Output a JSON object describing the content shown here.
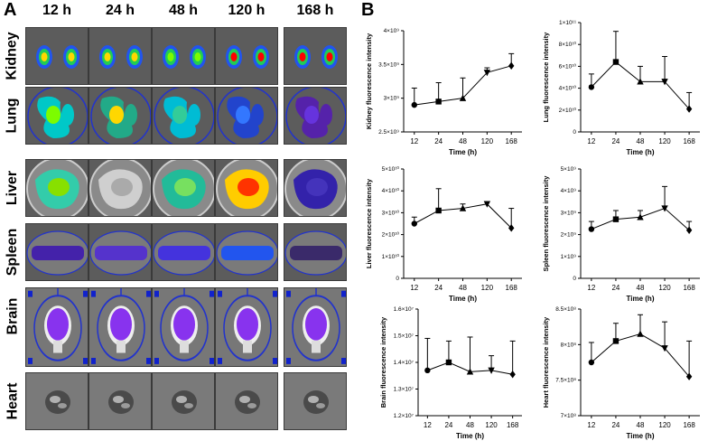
{
  "panels": {
    "a": "A",
    "b": "B"
  },
  "imaging": {
    "time_points": [
      "12 h",
      "24 h",
      "48 h",
      "120 h",
      "168 h"
    ],
    "organs": [
      "Kidney",
      "Lung",
      "Liver",
      "Spleen",
      "Brain",
      "Heart"
    ]
  },
  "chart_data": [
    {
      "type": "line",
      "title": "",
      "xlabel": "Time (h)",
      "ylabel": "Kidney fluorescence intensity",
      "categories": [
        "12",
        "24",
        "48",
        "120",
        "168"
      ],
      "values": [
        2900000000.0,
        2950000000.0,
        3000000000.0,
        3380000000.0,
        3480000000.0
      ],
      "errors": [
        250000000.0,
        280000000.0,
        300000000.0,
        70000000.0,
        180000000.0
      ],
      "marker": "circle-square-triangle-invtriangle-diamond",
      "ylim": [
        2500000000.0,
        4000000000.0
      ],
      "yticks": [
        "2.5×10⁹",
        "3×10⁹",
        "3.5×10⁹",
        "4×10⁹"
      ],
      "ytick_values": [
        2500000000.0,
        3000000000.0,
        3500000000.0,
        4000000000.0
      ]
    },
    {
      "type": "line",
      "title": "",
      "xlabel": "Time (h)",
      "ylabel": "Lung fluorescence intensity",
      "categories": [
        "12",
        "24",
        "48",
        "120",
        "168"
      ],
      "values": [
        41000000000.0,
        64000000000.0,
        46000000000.0,
        46000000000.0,
        21000000000.0
      ],
      "errors": [
        12000000000.0,
        28000000000.0,
        14000000000.0,
        23000000000.0,
        15000000000.0
      ],
      "ylim": [
        0,
        100000000000.0
      ],
      "yticks": [
        "0",
        "2×10¹⁰",
        "4×10¹⁰",
        "6×10¹⁰",
        "8×10¹⁰",
        "1×10¹¹"
      ],
      "ytick_values": [
        0,
        20000000000.0,
        40000000000.0,
        60000000000.0,
        80000000000.0,
        100000000000.0
      ]
    },
    {
      "type": "line",
      "title": "",
      "xlabel": "Time (h)",
      "ylabel": "Liver fluorescence intensity",
      "categories": [
        "12",
        "24",
        "48",
        "120",
        "168"
      ],
      "values": [
        25000000000.0,
        31000000000.0,
        32000000000.0,
        34000000000.0,
        23000000000.0
      ],
      "errors": [
        3000000000.0,
        10000000000.0,
        2000000000.0,
        1000000000.0,
        9000000000.0
      ],
      "ylim": [
        0,
        50000000000.0
      ],
      "yticks": [
        "0",
        "1×10¹⁰",
        "2×10¹⁰",
        "3×10¹⁰",
        "4×10¹⁰",
        "5×10¹⁰"
      ],
      "ytick_values": [
        0,
        10000000000.0,
        20000000000.0,
        30000000000.0,
        40000000000.0,
        50000000000.0
      ]
    },
    {
      "type": "line",
      "title": "",
      "xlabel": "Time (h)",
      "ylabel": "Spleen fluorescence intensity",
      "categories": [
        "12",
        "24",
        "48",
        "120",
        "168"
      ],
      "values": [
        2250000000.0,
        2700000000.0,
        2800000000.0,
        3200000000.0,
        2200000000.0
      ],
      "errors": [
        350000000.0,
        400000000.0,
        300000000.0,
        1000000000.0,
        400000000.0
      ],
      "ylim": [
        0,
        5000000000.0
      ],
      "yticks": [
        "0",
        "1×10⁹",
        "2×10⁹",
        "3×10⁹",
        "4×10⁹",
        "5×10⁹"
      ],
      "ytick_values": [
        0,
        1000000000.0,
        2000000000.0,
        3000000000.0,
        4000000000.0,
        5000000000.0
      ]
    },
    {
      "type": "line",
      "title": "",
      "xlabel": "Time (h)",
      "ylabel": "Brain fluorescence intensity",
      "categories": [
        "12",
        "24",
        "48",
        "120",
        "168"
      ],
      "values": [
        13700000.0,
        14000000.0,
        13650000.0,
        13700000.0,
        13550000.0
      ],
      "errors": [
        1200000.0,
        800000.0,
        1300000.0,
        550000.0,
        1250000.0
      ],
      "ylim": [
        12000000.0,
        16000000.0
      ],
      "yticks": [
        "1.2×10⁷",
        "1.3×10⁷",
        "1.4×10⁷",
        "1.5×10⁷",
        "1.6×10⁷"
      ],
      "ytick_values": [
        12000000.0,
        13000000.0,
        14000000.0,
        15000000.0,
        16000000.0
      ]
    },
    {
      "type": "line",
      "title": "",
      "xlabel": "Time (h)",
      "ylabel": "Heart fluorescence intensity",
      "categories": [
        "12",
        "24",
        "48",
        "120",
        "168"
      ],
      "values": [
        775000000.0,
        805000000.0,
        815000000.0,
        795000000.0,
        755000000.0
      ],
      "errors": [
        28000000.0,
        25000000.0,
        27000000.0,
        37000000.0,
        50000000.0
      ],
      "ylim": [
        700000000.0,
        850000000.0
      ],
      "yticks": [
        "7×10⁸",
        "7.5×10⁸",
        "8×10⁸",
        "8.5×10⁸"
      ],
      "ytick_values": [
        700000000.0,
        750000000.0,
        800000000.0,
        850000000.0
      ]
    }
  ]
}
